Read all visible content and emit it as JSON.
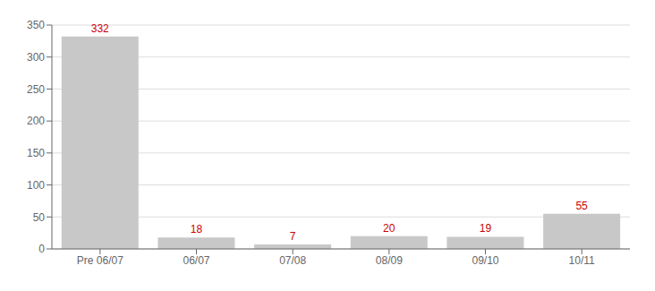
{
  "chart_data": {
    "type": "bar",
    "categories": [
      "Pre 06/07",
      "06/07",
      "07/08",
      "08/09",
      "09/10",
      "10/11"
    ],
    "values": [
      332,
      18,
      7,
      20,
      19,
      55
    ],
    "color": "#c8c8c8",
    "ylim": [
      0,
      350
    ],
    "yticks": [
      0,
      50,
      100,
      150,
      200,
      250,
      300,
      350
    ],
    "grid": true,
    "data_labels": true
  }
}
